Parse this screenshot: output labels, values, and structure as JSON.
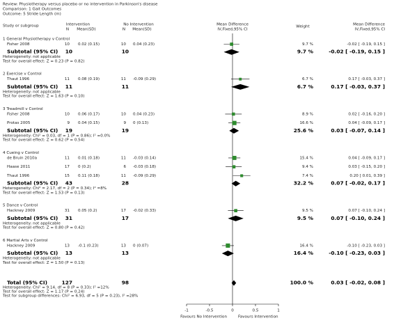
{
  "header": {
    "review": "Review:  Physiotherapy versus placebo or no intervention in Parkinson's disease",
    "comparison": "Comparison:  1 Gait Outcomes",
    "outcome": "Outcome:  5 Stride Length (m)"
  },
  "columns": {
    "study": "Study or subgroup",
    "intervention": "Intervention",
    "int_n": "N",
    "int_mean": "Mean(SD)",
    "no_intervention": "No Intervention",
    "ctrl_n": "N",
    "ctrl_mean": "Mean(SD)",
    "md_plot": "Mean Difference",
    "md_plot_method": "IV,Fixed,95% CI",
    "weight": "Weight",
    "md": "Mean Difference",
    "md_method": "IV,Fixed,95% CI"
  },
  "groups": [
    {
      "title": "1 General Physiotherapy v Control",
      "studies": [
        {
          "name": "Fisher 2008",
          "int_n": 10,
          "int_mean": "0.02 (0.15)",
          "ctrl_n": 10,
          "ctrl_mean": "0.04 (0.23)",
          "weight": {
            "value": 9.7,
            "label": "9.7 %"
          },
          "effect": {
            "md": -0.02,
            "lo": -0.19,
            "hi": 0.15,
            "label": "-0.02 [ -0.19, 0.15 ]"
          }
        }
      ],
      "subtotal": {
        "label": "Subtotal (95% CI)",
        "int_n": 10,
        "ctrl_n": 10,
        "weight": {
          "value": 9.7,
          "label": "9.7 %"
        },
        "effect": {
          "md": -0.02,
          "lo": -0.19,
          "hi": 0.15,
          "label": "-0.02 [ -0.19, 0.15 ]"
        }
      },
      "heterogeneity": "Heterogeneity: not applicable",
      "overall_effect": "Test for overall effect: Z = 0.23 (P = 0.82)"
    },
    {
      "title": "2 Exercise v Control",
      "studies": [
        {
          "name": "Thaut 1996",
          "int_n": 11,
          "int_mean": "0.08 (0.19)",
          "ctrl_n": 11,
          "ctrl_mean": "-0.09 (0.29)",
          "weight": {
            "value": 6.7,
            "label": "6.7 %"
          },
          "effect": {
            "md": 0.17,
            "lo": -0.03,
            "hi": 0.37,
            "label": "0.17 [ -0.03, 0.37 ]"
          }
        }
      ],
      "subtotal": {
        "label": "Subtotal (95% CI)",
        "int_n": 11,
        "ctrl_n": 11,
        "weight": {
          "value": 6.7,
          "label": "6.7 %"
        },
        "effect": {
          "md": 0.17,
          "lo": -0.03,
          "hi": 0.37,
          "label": "0.17 [ -0.03, 0.37 ]"
        }
      },
      "heterogeneity": "Heterogeneity: not applicable",
      "overall_effect": "Test for overall effect: Z = 1.63 (P = 0.10)"
    },
    {
      "title": "3 Treadmill v Control",
      "studies": [
        {
          "name": "Fisher 2008",
          "int_n": 10,
          "int_mean": "0.06 (0.17)",
          "ctrl_n": 10,
          "ctrl_mean": "0.04 (0.23)",
          "weight": {
            "value": 8.9,
            "label": "8.9 %"
          },
          "effect": {
            "md": 0.02,
            "lo": -0.16,
            "hi": 0.2,
            "label": "0.02 [ -0.16, 0.20 ]"
          }
        },
        {
          "name": "Protas 2005",
          "int_n": 9,
          "int_mean": "0.04 (0.15)",
          "ctrl_n": 9,
          "ctrl_mean": "0 (0.13)",
          "weight": {
            "value": 16.6,
            "label": "16.6 %"
          },
          "effect": {
            "md": 0.04,
            "lo": -0.09,
            "hi": 0.17,
            "label": "0.04 [ -0.09, 0.17 ]"
          }
        }
      ],
      "subtotal": {
        "label": "Subtotal (95% CI)",
        "int_n": 19,
        "ctrl_n": 19,
        "weight": {
          "value": 25.6,
          "label": "25.6 %"
        },
        "effect": {
          "md": 0.03,
          "lo": -0.07,
          "hi": 0.14,
          "label": "0.03 [ -0.07, 0.14 ]"
        }
      },
      "heterogeneity": "Heterogeneity: Chi² = 0.03, df = 1 (P = 0.86); I² =0.0%",
      "overall_effect": "Test for overall effect: Z = 0.62 (P = 0.54)"
    },
    {
      "title": "4 Cueing v Control",
      "studies": [
        {
          "name": "de Bruin 2010a",
          "int_n": 11,
          "int_mean": "0.01 (0.18)",
          "ctrl_n": 11,
          "ctrl_mean": "-0.03 (0.14)",
          "weight": {
            "value": 15.4,
            "label": "15.4 %"
          },
          "effect": {
            "md": 0.04,
            "lo": -0.09,
            "hi": 0.17,
            "label": "0.04 [ -0.09, 0.17 ]"
          }
        },
        {
          "name": "Haase 2011",
          "int_n": 17,
          "int_mean": "0 (0.2)",
          "ctrl_n": 6,
          "ctrl_mean": "-0.03 (0.18)",
          "weight": {
            "value": 9.4,
            "label": "9.4 %"
          },
          "effect": {
            "md": 0.03,
            "lo": -0.15,
            "hi": 0.2,
            "label": "0.03 [ -0.15, 0.20 ]"
          }
        },
        {
          "name": "Thaut 1996",
          "int_n": 15,
          "int_mean": "0.11 (0.18)",
          "ctrl_n": 11,
          "ctrl_mean": "-0.09 (0.29)",
          "weight": {
            "value": 7.4,
            "label": "7.4 %"
          },
          "effect": {
            "md": 0.2,
            "lo": 0.01,
            "hi": 0.39,
            "label": "0.20 [ 0.01, 0.39 ]"
          }
        }
      ],
      "subtotal": {
        "label": "Subtotal (95% CI)",
        "int_n": 43,
        "ctrl_n": 28,
        "weight": {
          "value": 32.2,
          "label": "32.2 %"
        },
        "effect": {
          "md": 0.07,
          "lo": -0.02,
          "hi": 0.17,
          "label": "0.07 [ -0.02, 0.17 ]"
        }
      },
      "heterogeneity": "Heterogeneity: Chi² = 2.17, df = 2 (P = 0.34); I² =8%",
      "overall_effect": "Test for overall effect: Z = 1.53 (P = 0.13)"
    },
    {
      "title": "5 Dance v Control",
      "studies": [
        {
          "name": "Hackney 2009",
          "int_n": 31,
          "int_mean": "0.05 (0.2)",
          "ctrl_n": 17,
          "ctrl_mean": "-0.02 (0.33)",
          "weight": {
            "value": 9.5,
            "label": "9.5 %"
          },
          "effect": {
            "md": 0.07,
            "lo": -0.1,
            "hi": 0.24,
            "label": "0.07 [ -0.10, 0.24 ]"
          }
        }
      ],
      "subtotal": {
        "label": "Subtotal (95% CI)",
        "int_n": 31,
        "ctrl_n": 17,
        "weight": {
          "value": 9.5,
          "label": "9.5 %"
        },
        "effect": {
          "md": 0.07,
          "lo": -0.1,
          "hi": 0.24,
          "label": "0.07 [ -0.10, 0.24 ]"
        }
      },
      "heterogeneity": "Heterogeneity: not applicable",
      "overall_effect": "Test for overall effect: Z = 0.80 (P = 0.42)"
    },
    {
      "title": "6 Martial Arts v Control",
      "studies": [
        {
          "name": "Hackney 2009",
          "int_n": 13,
          "int_mean": "-0.1 (0.23)",
          "ctrl_n": 13,
          "ctrl_mean": "0 (0.07)",
          "weight": {
            "value": 16.4,
            "label": "16.4 %"
          },
          "effect": {
            "md": -0.1,
            "lo": -0.23,
            "hi": 0.03,
            "label": "-0.10 [ -0.23, 0.03 ]"
          }
        }
      ],
      "subtotal": {
        "label": "Subtotal (95% CI)",
        "int_n": 13,
        "ctrl_n": 13,
        "weight": {
          "value": 16.4,
          "label": "16.4 %"
        },
        "effect": {
          "md": -0.1,
          "lo": -0.23,
          "hi": 0.03,
          "label": "-0.10 [ -0.23, 0.03 ]"
        }
      },
      "heterogeneity": "Heterogeneity: not applicable",
      "overall_effect": "Test for overall effect: Z = 1.50 (P = 0.13)"
    }
  ],
  "total": {
    "label": "Total (95% CI)",
    "int_n": 127,
    "ctrl_n": 98,
    "weight": {
      "value": 100.0,
      "label": "100.0 %"
    },
    "effect": {
      "md": 0.03,
      "lo": -0.02,
      "hi": 0.08,
      "label": "0.03 [ -0.02, 0.08 ]"
    },
    "heterogeneity": "Heterogeneity: Chi² = 9.14, df = 8 (P = 0.33); I² =12%",
    "overall_effect": "Test for overall effect: Z = 1.17 (P = 0.24)",
    "subgroup_differences": "Test for subgroup differences: Chi² = 6.93, df = 5 (P = 0.23), I² =28%"
  },
  "axis": {
    "xlim": [
      -1,
      1
    ],
    "xticks": [
      -1,
      -0.5,
      0,
      0.5,
      1
    ],
    "left_label": "Favours No Intervention",
    "right_label": "Favours Intervention"
  },
  "colors": {
    "study_marker": "#2e8b2e",
    "summary": "#000000"
  }
}
